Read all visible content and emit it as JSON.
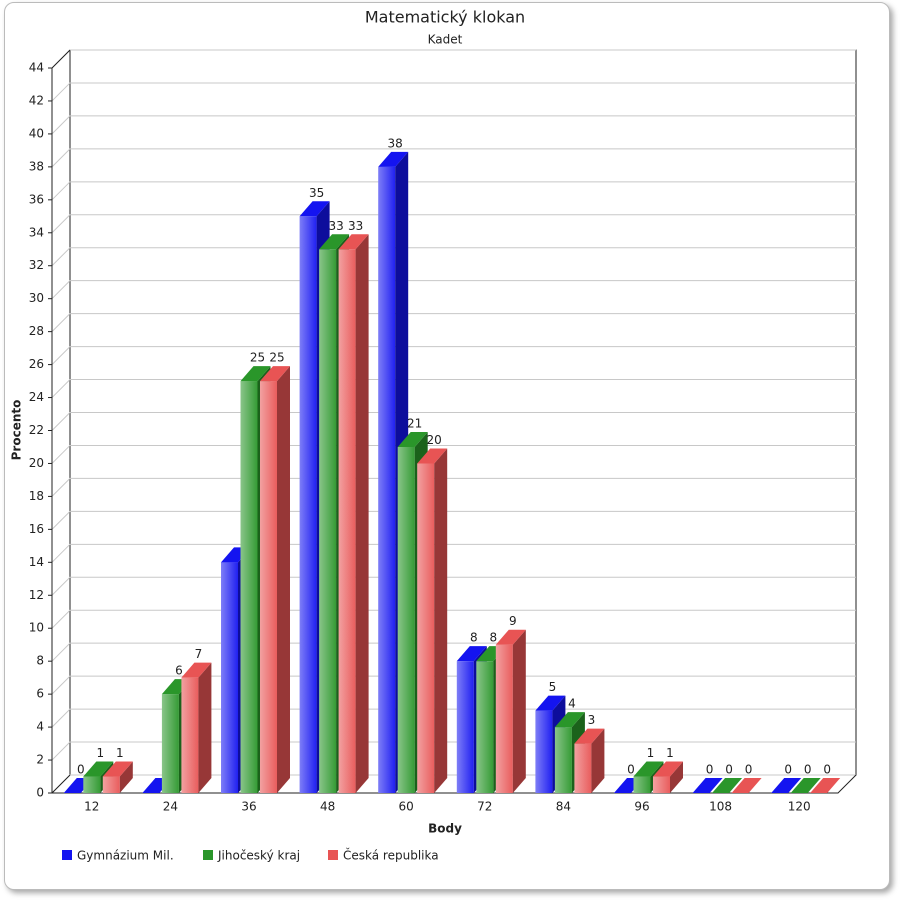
{
  "chart_data": {
    "type": "bar3d",
    "title": "Matematický klokan",
    "subtitle": "Kadet",
    "x_label": "Body",
    "y_label": "Procento",
    "categories": [
      "12",
      "24",
      "36",
      "48",
      "60",
      "72",
      "84",
      "96",
      "108",
      "120"
    ],
    "series": [
      {
        "name": "Gymnázium Mil.",
        "color": "#1414f0",
        "values": [
          0,
          0,
          14,
          35,
          38,
          8,
          5,
          0,
          0,
          0
        ],
        "value_labels": [
          "0",
          null,
          null,
          "35",
          "38",
          "8",
          "5",
          "0",
          "0",
          "0"
        ]
      },
      {
        "name": "Jihočeský kraj",
        "color": "#2a962a",
        "values": [
          1,
          6,
          25,
          33,
          21,
          8,
          4,
          1,
          0,
          0
        ]
      },
      {
        "name": "Česká republika",
        "color": "#e85454",
        "values": [
          1,
          7,
          25,
          33,
          20,
          9,
          3,
          1,
          0,
          0
        ]
      }
    ],
    "ylim": [
      0,
      44
    ],
    "yticks": [
      0,
      2,
      4,
      6,
      8,
      10,
      12,
      14,
      16,
      18,
      20,
      22,
      24,
      26,
      28,
      30,
      32,
      34,
      36,
      38,
      40,
      42,
      44
    ],
    "grid": true
  }
}
